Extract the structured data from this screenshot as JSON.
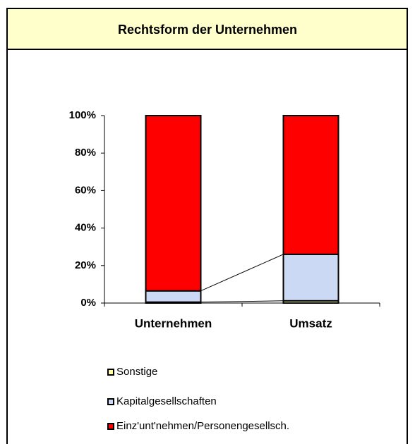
{
  "chart_data": {
    "type": "stacked-bar",
    "title": "Rechtsform der Unternehmen",
    "categories": [
      "Unternehmen",
      "Umsatz"
    ],
    "series": [
      {
        "name": "Sonstige",
        "color": "#ffff99",
        "values": [
          0.5,
          1.2
        ]
      },
      {
        "name": "Kapitalgesellschaften",
        "color": "#ccd9f5",
        "values": [
          6,
          24.8
        ]
      },
      {
        "name": "Einz'unt'nehmen/Personengesellsch.",
        "color": "#ff0000",
        "values": [
          93.5,
          74
        ]
      }
    ],
    "ylim": [
      0,
      100
    ],
    "yticks": [
      {
        "value": 0,
        "label": "0%"
      },
      {
        "value": 20,
        "label": "20%"
      },
      {
        "value": 40,
        "label": "40%"
      },
      {
        "value": 60,
        "label": "60%"
      },
      {
        "value": 80,
        "label": "80%"
      },
      {
        "value": 100,
        "label": "100%"
      }
    ]
  }
}
